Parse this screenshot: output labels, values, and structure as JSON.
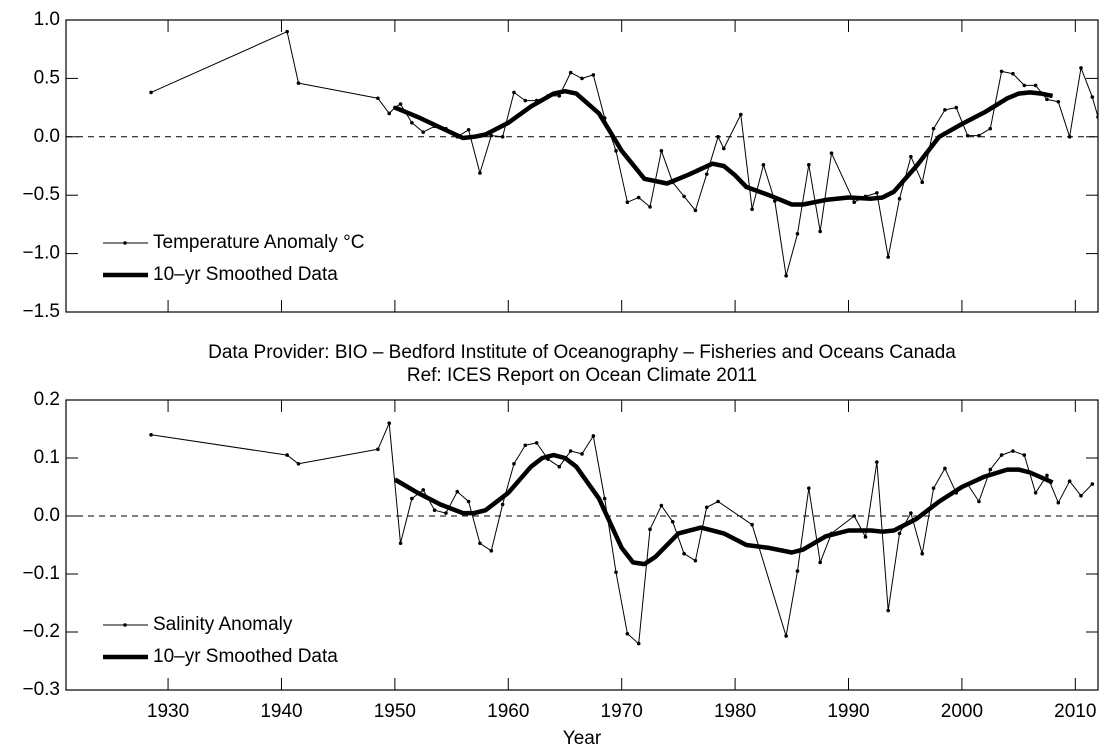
{
  "annotations": [
    "Data Provider: BIO –  Bedford Institute of Oceanography – Fisheries and Oceans Canada",
    "Ref: ICES Report on Ocean Climate 2011"
  ],
  "chart_data": [
    {
      "type": "line",
      "xlim": [
        1921,
        2012
      ],
      "ylim": [
        -1.5,
        1.0
      ],
      "yticks": [
        {
          "value": -1.5,
          "label": "−1.5"
        },
        {
          "value": -1.0,
          "label": "−1.0"
        },
        {
          "value": -0.5,
          "label": "−0.5"
        },
        {
          "value": 0,
          "label": "0.0"
        },
        {
          "value": 0.5,
          "label": "0.5"
        },
        {
          "value": 1.0,
          "label": "1.0"
        }
      ],
      "hline": 0,
      "legend": "lower left",
      "series": [
        {
          "name": "Temperature Anomaly °C",
          "color": "#000000",
          "style": "thin-markers",
          "x": [
            1928.5,
            1940.5,
            1941.5,
            1948.5,
            1949.5,
            1950,
            1950.5,
            1951.5,
            1952.5,
            1953.5,
            1954.5,
            1955.5,
            1956.5,
            1957.5,
            1958.5,
            1959.5,
            1960.5,
            1961.5,
            1962.5,
            1963.5,
            1964.5,
            1965.5,
            1966.5,
            1967.5,
            1968.5,
            1969.5,
            1970.5,
            1971.5,
            1972.5,
            1973.5,
            1974.5,
            1975.5,
            1976.5,
            1977.5,
            1978.5,
            1979,
            1980.5,
            1981.5,
            1982.5,
            1983.5,
            1984.5,
            1985.5,
            1986.5,
            1987.5,
            1988.5,
            1990.5,
            1991.5,
            1992.5,
            1993.5,
            1994.5,
            1995.5,
            1996.5,
            1997.5,
            1998.5,
            1999.5,
            2000.5,
            2001.5,
            2002.5,
            2003.5,
            2004.5,
            2005.5,
            2006.5,
            2007.5,
            2008.5,
            2009.5,
            2010.5,
            2011.5,
            2012
          ],
          "values": [
            0.38,
            0.9,
            0.46,
            0.33,
            0.2,
            0.25,
            0.28,
            0.12,
            0.04,
            0.09,
            0.07,
            0.0,
            0.06,
            -0.31,
            0.01,
            0.0,
            0.38,
            0.31,
            0.31,
            0.35,
            0.35,
            0.55,
            0.5,
            0.53,
            0.16,
            -0.12,
            -0.56,
            -0.52,
            -0.6,
            -0.12,
            -0.39,
            -0.51,
            -0.63,
            -0.32,
            0.0,
            -0.1,
            0.19,
            -0.62,
            -0.24,
            -0.55,
            -1.19,
            -0.83,
            -0.24,
            -0.81,
            -0.14,
            -0.56,
            -0.51,
            -0.48,
            -1.03,
            -0.53,
            -0.17,
            -0.39,
            0.07,
            0.23,
            0.25,
            0.01,
            0.01,
            0.07,
            0.56,
            0.54,
            0.44,
            0.44,
            0.32,
            0.3,
            0.0,
            0.59,
            0.34,
            0.17
          ]
        },
        {
          "name": "10–yr Smoothed Data",
          "color": "#000000",
          "style": "thick",
          "x": [
            1950,
            1952,
            1954,
            1956,
            1957,
            1958,
            1960,
            1962,
            1964,
            1965,
            1966,
            1968,
            1970,
            1972,
            1974,
            1976,
            1978,
            1979,
            1980,
            1981,
            1983,
            1985,
            1986,
            1988,
            1990,
            1992,
            1993,
            1994,
            1996,
            1998,
            2000,
            2002,
            2004,
            2005,
            2006,
            2007,
            2008
          ],
          "values": [
            0.25,
            0.17,
            0.08,
            -0.01,
            0.0,
            0.02,
            0.12,
            0.26,
            0.37,
            0.39,
            0.37,
            0.2,
            -0.12,
            -0.36,
            -0.4,
            -0.32,
            -0.23,
            -0.25,
            -0.33,
            -0.43,
            -0.5,
            -0.58,
            -0.58,
            -0.54,
            -0.52,
            -0.53,
            -0.52,
            -0.47,
            -0.25,
            0.0,
            0.11,
            0.21,
            0.33,
            0.37,
            0.38,
            0.37,
            0.35
          ]
        }
      ]
    },
    {
      "type": "line",
      "xlim": [
        1921,
        2012
      ],
      "ylim": [
        -0.3,
        0.2
      ],
      "xlabel": "Year",
      "xticks": [
        1930,
        1940,
        1950,
        1960,
        1970,
        1980,
        1990,
        2000,
        2010
      ],
      "yticks": [
        {
          "value": -0.3,
          "label": "−0.3"
        },
        {
          "value": -0.2,
          "label": "−0.2"
        },
        {
          "value": -0.1,
          "label": "−0.1"
        },
        {
          "value": 0,
          "label": "0.0"
        },
        {
          "value": 0.1,
          "label": "0.1"
        },
        {
          "value": 0.2,
          "label": "0.2"
        }
      ],
      "hline": 0,
      "legend": "lower left",
      "series": [
        {
          "name": "Salinity Anomaly",
          "color": "#000000",
          "style": "thin-markers",
          "x": [
            1928.5,
            1940.5,
            1941.5,
            1948.5,
            1949.5,
            1950.5,
            1951.5,
            1952.5,
            1953.5,
            1954.5,
            1955.5,
            1956.5,
            1957.5,
            1958.5,
            1959.5,
            1960.5,
            1961.5,
            1962.5,
            1963.5,
            1964.5,
            1965.5,
            1966.5,
            1967.5,
            1968.5,
            1969.5,
            1970.5,
            1971.5,
            1972.5,
            1973.5,
            1974.5,
            1975.5,
            1976.5,
            1977.5,
            1978.5,
            1981.5,
            1984.5,
            1985.5,
            1986.5,
            1987.5,
            1988.5,
            1990.5,
            1991.5,
            1992.5,
            1993.5,
            1994.5,
            1995.5,
            1996.5,
            1997.5,
            1998.5,
            1999.5,
            2000.5,
            2001.5,
            2002.5,
            2003.5,
            2004.5,
            2005.5,
            2006.5,
            2007.5,
            2008.5,
            2009.5,
            2010.5,
            2011.5
          ],
          "values": [
            0.14,
            0.105,
            0.09,
            0.115,
            0.16,
            -0.047,
            0.03,
            0.045,
            0.01,
            0.005,
            0.042,
            0.025,
            -0.047,
            -0.06,
            0.02,
            0.09,
            0.122,
            0.126,
            0.098,
            0.085,
            0.112,
            0.107,
            0.138,
            0.03,
            -0.097,
            -0.203,
            -0.22,
            -0.023,
            0.018,
            -0.01,
            -0.065,
            -0.077,
            0.015,
            0.025,
            -0.015,
            -0.207,
            -0.095,
            0.048,
            -0.08,
            -0.03,
            0.0,
            -0.036,
            0.093,
            -0.163,
            -0.03,
            0.005,
            -0.065,
            0.048,
            0.082,
            0.04,
            0.055,
            0.025,
            0.08,
            0.105,
            0.112,
            0.105,
            0.04,
            0.07,
            0.023,
            0.06,
            0.035,
            0.055
          ]
        },
        {
          "name": "10–yr Smoothed Data",
          "color": "#000000",
          "style": "thick",
          "x": [
            1950,
            1952,
            1954,
            1956,
            1957,
            1958,
            1960,
            1962,
            1963,
            1964,
            1965,
            1966,
            1968,
            1970,
            1971,
            1972,
            1973,
            1975,
            1977,
            1979,
            1981,
            1983,
            1985,
            1986,
            1988,
            1990,
            1992,
            1993,
            1994,
            1996,
            1998,
            2000,
            2002,
            2004,
            2005,
            2006,
            2008
          ],
          "values": [
            0.063,
            0.04,
            0.02,
            0.005,
            0.005,
            0.01,
            0.04,
            0.085,
            0.1,
            0.105,
            0.1,
            0.085,
            0.03,
            -0.055,
            -0.08,
            -0.083,
            -0.07,
            -0.03,
            -0.02,
            -0.03,
            -0.05,
            -0.055,
            -0.063,
            -0.058,
            -0.035,
            -0.025,
            -0.025,
            -0.027,
            -0.025,
            -0.005,
            0.025,
            0.05,
            0.068,
            0.08,
            0.08,
            0.075,
            0.058
          ]
        }
      ]
    }
  ]
}
